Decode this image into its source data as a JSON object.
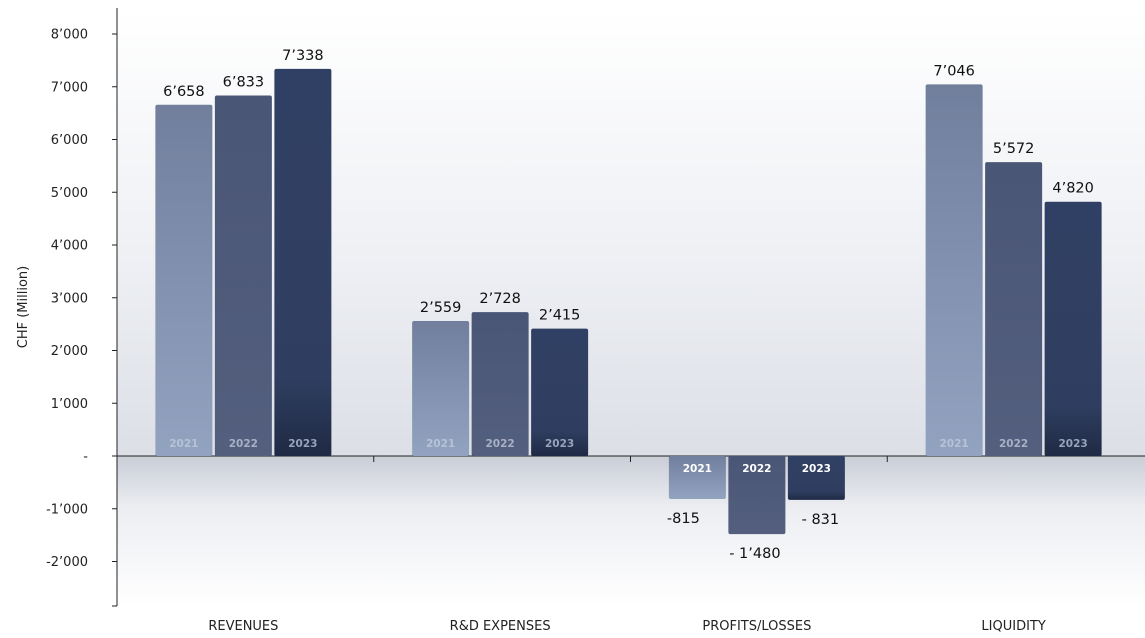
{
  "chart_data": {
    "type": "bar",
    "ylabel": "CHF (Million)",
    "ylim": [
      -2800,
      8000
    ],
    "yticks": [
      {
        "value": 8000,
        "label": "8’000"
      },
      {
        "value": 7000,
        "label": "7’000"
      },
      {
        "value": 6000,
        "label": "6’000"
      },
      {
        "value": 5000,
        "label": "5’000"
      },
      {
        "value": 4000,
        "label": "4’000"
      },
      {
        "value": 3000,
        "label": "3’000"
      },
      {
        "value": 2000,
        "label": "2’000"
      },
      {
        "value": 1000,
        "label": "1’000"
      },
      {
        "value": 0,
        "label": "-"
      },
      {
        "value": -1000,
        "label": "-1’000"
      },
      {
        "value": -2000,
        "label": "-2’000"
      }
    ],
    "grid": false,
    "legend": "none",
    "categories": [
      "REVENUES",
      "R&D EXPENSES",
      "PROFITS/LOSSES",
      "LIQUIDITY"
    ],
    "series": [
      {
        "name": "2021",
        "color": "#7f8fae",
        "values": [
          6658,
          2559,
          -815,
          7046
        ],
        "labels": [
          "6’658",
          "2’559",
          "-815",
          "7’046"
        ]
      },
      {
        "name": "2022",
        "color": "#4b5878",
        "values": [
          6833,
          2728,
          -1480,
          5572
        ],
        "labels": [
          "6’833",
          "2’728",
          "- 1’480",
          "5’572"
        ]
      },
      {
        "name": "2023",
        "color": "#2c3c5e",
        "values": [
          7338,
          2415,
          -831,
          4820
        ],
        "labels": [
          "7’338",
          "2’415",
          "- 831",
          "4’820"
        ]
      }
    ]
  }
}
